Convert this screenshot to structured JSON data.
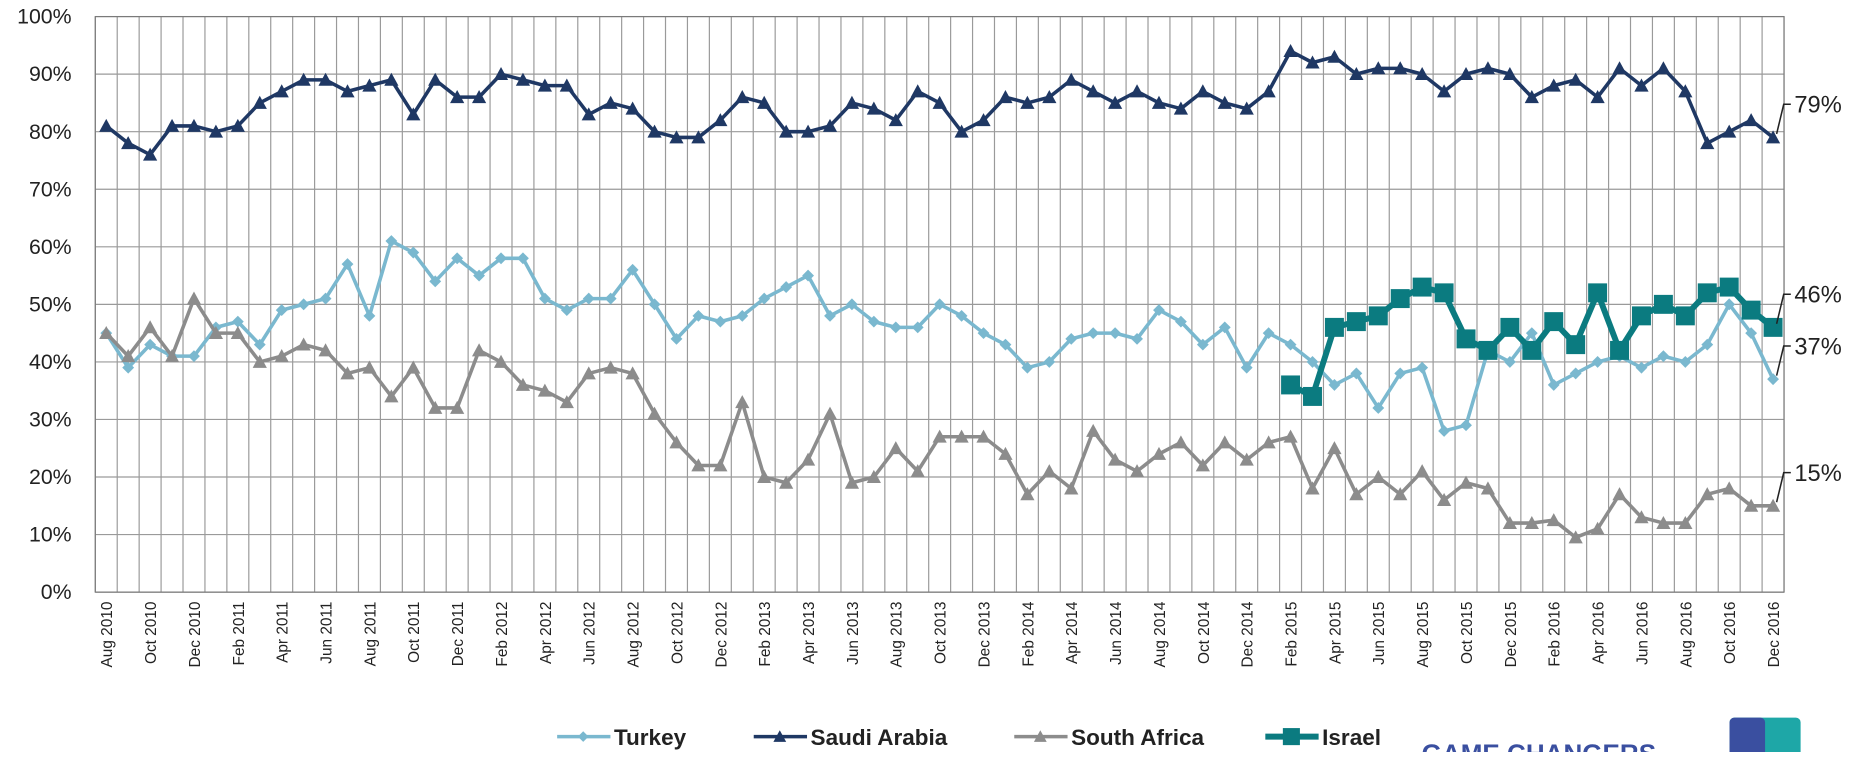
{
  "chart_data": {
    "type": "line",
    "categories": [
      "Aug 2010",
      null,
      "Oct 2010",
      null,
      "Dec 2010",
      null,
      "Feb 2011",
      null,
      "Apr 2011",
      null,
      "Jun 2011",
      null,
      "Aug 2011",
      null,
      "Oct 2011",
      null,
      "Dec 2011",
      null,
      "Feb 2012",
      null,
      "Apr 2012",
      null,
      "Jun 2012",
      null,
      "Aug 2012",
      null,
      "Oct 2012",
      null,
      "Dec 2012",
      null,
      "Feb 2013",
      null,
      "Apr 2013",
      null,
      "Jun 2013",
      null,
      "Aug 2013",
      null,
      "Oct 2013",
      null,
      "Dec 2013",
      null,
      "Feb 2014",
      null,
      "Apr 2014",
      null,
      "Jun 2014",
      null,
      "Aug 2014",
      null,
      "Oct 2014",
      null,
      "Dec 2014",
      null,
      "Feb 2015",
      null,
      "Apr 2015",
      null,
      "Jun 2015",
      null,
      "Aug 2015",
      null,
      "Oct 2015",
      null,
      "Dec 2015",
      null,
      "Feb 2016",
      null,
      "Apr 2016",
      null,
      "Jun 2016",
      null,
      "Aug 2016",
      null,
      "Oct 2016",
      null,
      "Dec 2016"
    ],
    "series": [
      {
        "name": "Turkey",
        "color": "#7ab8cf",
        "marker": "diamond",
        "end_label": "37%",
        "values": [
          45,
          39,
          43,
          41,
          41,
          46,
          47,
          43,
          49,
          50,
          51,
          57,
          48,
          61,
          59,
          54,
          58,
          55,
          58,
          58,
          51,
          49,
          51,
          51,
          56,
          50,
          44,
          48,
          47,
          48,
          51,
          53,
          55,
          48,
          50,
          47,
          46,
          46,
          50,
          48,
          45,
          43,
          39,
          40,
          44,
          45,
          45,
          44,
          49,
          47,
          43,
          46,
          39,
          45,
          43,
          40,
          36,
          38,
          32,
          38,
          39,
          28,
          29,
          42,
          40,
          45,
          36,
          38,
          40,
          41,
          39,
          41,
          40,
          43,
          50,
          45,
          37
        ]
      },
      {
        "name": "Saudi Arabia",
        "color": "#1f3864",
        "marker": "triangle",
        "end_label": "79%",
        "values": [
          81,
          78,
          76,
          81,
          81,
          80,
          81,
          85,
          87,
          89,
          89,
          87,
          88,
          89,
          83,
          89,
          86,
          86,
          90,
          89,
          88,
          88,
          83,
          85,
          84,
          80,
          79,
          79,
          82,
          86,
          85,
          80,
          80,
          81,
          85,
          84,
          82,
          87,
          85,
          80,
          82,
          86,
          85,
          86,
          89,
          87,
          85,
          87,
          85,
          84,
          87,
          85,
          84,
          87,
          94,
          92,
          93,
          90,
          91,
          91,
          90,
          87,
          90,
          91,
          90,
          86,
          88,
          89,
          86,
          91,
          88,
          91,
          87,
          78,
          80,
          82,
          79
        ]
      },
      {
        "name": "South Africa",
        "color": "#8c8c8c",
        "marker": "triangle",
        "end_label": "15%",
        "values": [
          45,
          41,
          46,
          41,
          51,
          45,
          45,
          40,
          41,
          43,
          42,
          38,
          39,
          34,
          39,
          32,
          32,
          42,
          40,
          36,
          35,
          33,
          38,
          39,
          38,
          31,
          26,
          22,
          22,
          33,
          20,
          19,
          23,
          31,
          19,
          20,
          25,
          21,
          27,
          27,
          27,
          24,
          17,
          21,
          18,
          28,
          23,
          21,
          24,
          26,
          22,
          26,
          23,
          26,
          27,
          18,
          25,
          17,
          20,
          17,
          21,
          16,
          19,
          18,
          12,
          12,
          12.5,
          9.5,
          11,
          17,
          13,
          12,
          12,
          17,
          18,
          15,
          15
        ]
      },
      {
        "name": "Israel",
        "color": "#0b7b80",
        "marker": "square",
        "end_label": "46%",
        "values": [
          null,
          null,
          null,
          null,
          null,
          null,
          null,
          null,
          null,
          null,
          null,
          null,
          null,
          null,
          null,
          null,
          null,
          null,
          null,
          null,
          null,
          null,
          null,
          null,
          null,
          null,
          null,
          null,
          null,
          null,
          null,
          null,
          null,
          null,
          null,
          null,
          null,
          null,
          null,
          null,
          null,
          null,
          null,
          null,
          null,
          null,
          null,
          null,
          null,
          null,
          null,
          null,
          null,
          null,
          36,
          34,
          46,
          47,
          48,
          51,
          53,
          52,
          44,
          42,
          46,
          42,
          47,
          43,
          52,
          42,
          48,
          50,
          48,
          52,
          53,
          49,
          46
        ]
      }
    ],
    "ylim": [
      0,
      100
    ],
    "yticks": [
      {
        "value": 0,
        "label": "0%"
      },
      {
        "value": 10,
        "label": "10%"
      },
      {
        "value": 20,
        "label": "20%"
      },
      {
        "value": 30,
        "label": "30%"
      },
      {
        "value": 40,
        "label": "40%"
      },
      {
        "value": 50,
        "label": "50%"
      },
      {
        "value": 60,
        "label": "60%"
      },
      {
        "value": 70,
        "label": "70%"
      },
      {
        "value": 80,
        "label": "80%"
      },
      {
        "value": 90,
        "label": "90%"
      },
      {
        "value": 100,
        "label": "100%"
      }
    ],
    "grid": true,
    "legend": "bottom",
    "footer_text": "GAME CHANGERS"
  }
}
